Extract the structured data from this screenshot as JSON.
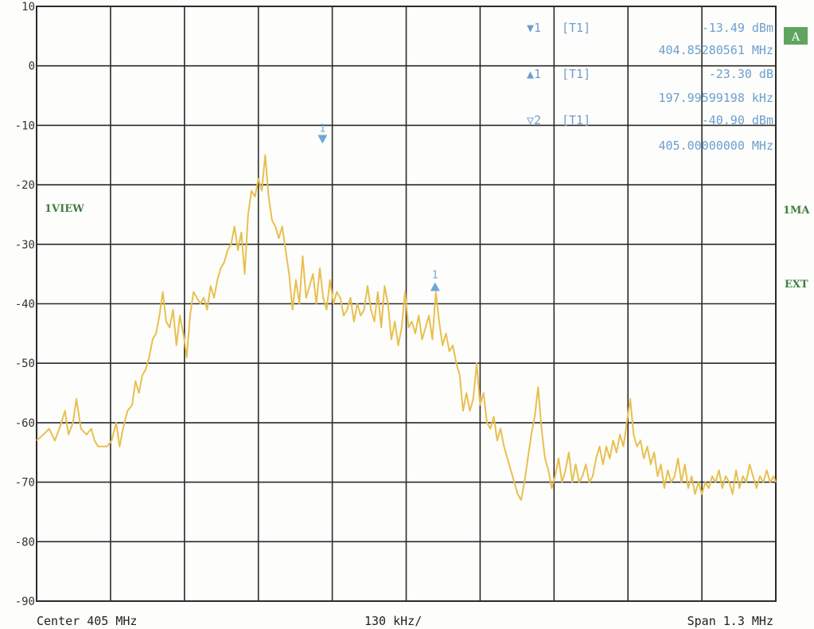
{
  "chart_data": {
    "type": "line",
    "x_unit": "MHz",
    "y_unit": "dBm",
    "xlim": [
      404.35,
      405.65
    ],
    "ylim": [
      -90,
      10
    ],
    "y_ticks": [
      10,
      0,
      -10,
      -20,
      -30,
      -40,
      -50,
      -60,
      -70,
      -80,
      -90
    ],
    "grid": true,
    "footer": {
      "center": "Center 405 MHz",
      "div": "130 kHz/",
      "span": "Span 1.3 MHz"
    },
    "side_labels": {
      "left": "1VIEW",
      "right_top": "A",
      "right_mid": "1MA",
      "right_low": "EXT"
    },
    "marker_table": [
      {
        "symbol": "▼1",
        "ref": "[T1]",
        "level": "-13.49 dBm",
        "freq": "404.85280561 MHz"
      },
      {
        "symbol": "▲1",
        "ref": "[T1]",
        "level": "-23.30 dB",
        "freq": "197.99599198 kHz"
      },
      {
        "symbol": "▽2",
        "ref": "[T1]",
        "level": "-40.90 dBm",
        "freq": "405.00000000 MHz"
      }
    ],
    "plot_markers": [
      {
        "label": "1",
        "shape": "down",
        "x": 404.8528,
        "y": -13.49
      },
      {
        "label": "1",
        "shape": "up",
        "x": 405.0508,
        "y": -36.79
      }
    ],
    "series": [
      {
        "color": "#e8c050",
        "points": [
          [
            404.35,
            -63
          ],
          [
            404.362,
            -62
          ],
          [
            404.372,
            -61
          ],
          [
            404.382,
            -63
          ],
          [
            404.39,
            -61
          ],
          [
            404.4,
            -58
          ],
          [
            404.406,
            -62
          ],
          [
            404.414,
            -60
          ],
          [
            404.42,
            -56
          ],
          [
            404.428,
            -61
          ],
          [
            404.438,
            -62
          ],
          [
            404.446,
            -61
          ],
          [
            404.452,
            -63
          ],
          [
            404.458,
            -64
          ],
          [
            404.466,
            -64
          ],
          [
            404.474,
            -64
          ],
          [
            404.482,
            -63
          ],
          [
            404.49,
            -60
          ],
          [
            404.496,
            -64
          ],
          [
            404.502,
            -61
          ],
          [
            404.51,
            -58
          ],
          [
            404.518,
            -57
          ],
          [
            404.524,
            -53
          ],
          [
            404.53,
            -55
          ],
          [
            404.536,
            -52
          ],
          [
            404.542,
            -51
          ],
          [
            404.548,
            -49
          ],
          [
            404.554,
            -46
          ],
          [
            404.56,
            -45
          ],
          [
            404.566,
            -42
          ],
          [
            404.572,
            -38
          ],
          [
            404.578,
            -43
          ],
          [
            404.584,
            -44
          ],
          [
            404.59,
            -41
          ],
          [
            404.596,
            -47
          ],
          [
            404.602,
            -42
          ],
          [
            404.608,
            -45
          ],
          [
            404.614,
            -49
          ],
          [
            404.62,
            -42
          ],
          [
            404.626,
            -38
          ],
          [
            404.632,
            -39
          ],
          [
            404.638,
            -40
          ],
          [
            404.644,
            -39
          ],
          [
            404.65,
            -41
          ],
          [
            404.656,
            -37
          ],
          [
            404.662,
            -39
          ],
          [
            404.668,
            -36
          ],
          [
            404.674,
            -34
          ],
          [
            404.68,
            -33
          ],
          [
            404.686,
            -31
          ],
          [
            404.692,
            -30
          ],
          [
            404.698,
            -27
          ],
          [
            404.704,
            -31
          ],
          [
            404.71,
            -28
          ],
          [
            404.716,
            -35
          ],
          [
            404.722,
            -25
          ],
          [
            404.728,
            -21
          ],
          [
            404.734,
            -22
          ],
          [
            404.74,
            -19
          ],
          [
            404.746,
            -21
          ],
          [
            404.752,
            -15
          ],
          [
            404.758,
            -22
          ],
          [
            404.764,
            -26
          ],
          [
            404.77,
            -27
          ],
          [
            404.776,
            -29
          ],
          [
            404.782,
            -27
          ],
          [
            404.788,
            -31
          ],
          [
            404.794,
            -35
          ],
          [
            404.8,
            -41
          ],
          [
            404.806,
            -36
          ],
          [
            404.812,
            -40
          ],
          [
            404.818,
            -32
          ],
          [
            404.824,
            -39
          ],
          [
            404.83,
            -37
          ],
          [
            404.836,
            -35
          ],
          [
            404.842,
            -40
          ],
          [
            404.848,
            -34
          ],
          [
            404.854,
            -39
          ],
          [
            404.86,
            -41
          ],
          [
            404.866,
            -36
          ],
          [
            404.872,
            -40
          ],
          [
            404.878,
            -38
          ],
          [
            404.884,
            -39
          ],
          [
            404.89,
            -42
          ],
          [
            404.896,
            -41
          ],
          [
            404.902,
            -39
          ],
          [
            404.908,
            -43
          ],
          [
            404.914,
            -40
          ],
          [
            404.92,
            -42
          ],
          [
            404.926,
            -41
          ],
          [
            404.932,
            -37
          ],
          [
            404.938,
            -41
          ],
          [
            404.944,
            -43
          ],
          [
            404.95,
            -38
          ],
          [
            404.956,
            -44
          ],
          [
            404.962,
            -37
          ],
          [
            404.968,
            -40
          ],
          [
            404.974,
            -46
          ],
          [
            404.98,
            -43
          ],
          [
            404.986,
            -47
          ],
          [
            404.992,
            -44
          ],
          [
            404.998,
            -38
          ],
          [
            405.004,
            -44
          ],
          [
            405.01,
            -43
          ],
          [
            405.016,
            -45
          ],
          [
            405.022,
            -42
          ],
          [
            405.028,
            -46
          ],
          [
            405.034,
            -44
          ],
          [
            405.04,
            -42
          ],
          [
            405.046,
            -46
          ],
          [
            405.052,
            -38
          ],
          [
            405.058,
            -43
          ],
          [
            405.064,
            -47
          ],
          [
            405.07,
            -45
          ],
          [
            405.076,
            -48
          ],
          [
            405.082,
            -47
          ],
          [
            405.088,
            -50
          ],
          [
            405.094,
            -52
          ],
          [
            405.1,
            -58
          ],
          [
            405.106,
            -55
          ],
          [
            405.112,
            -58
          ],
          [
            405.118,
            -56
          ],
          [
            405.124,
            -50
          ],
          [
            405.13,
            -57
          ],
          [
            405.136,
            -55
          ],
          [
            405.142,
            -60
          ],
          [
            405.148,
            -61
          ],
          [
            405.154,
            -59
          ],
          [
            405.16,
            -63
          ],
          [
            405.166,
            -61
          ],
          [
            405.172,
            -64
          ],
          [
            405.178,
            -66
          ],
          [
            405.184,
            -68
          ],
          [
            405.19,
            -70
          ],
          [
            405.196,
            -72
          ],
          [
            405.202,
            -73
          ],
          [
            405.208,
            -70
          ],
          [
            405.214,
            -66
          ],
          [
            405.22,
            -62
          ],
          [
            405.226,
            -59
          ],
          [
            405.232,
            -54
          ],
          [
            405.238,
            -61
          ],
          [
            405.244,
            -66
          ],
          [
            405.25,
            -68
          ],
          [
            405.256,
            -71
          ],
          [
            405.262,
            -69
          ],
          [
            405.268,
            -66
          ],
          [
            405.274,
            -70
          ],
          [
            405.28,
            -68
          ],
          [
            405.286,
            -65
          ],
          [
            405.292,
            -70
          ],
          [
            405.298,
            -67
          ],
          [
            405.304,
            -70
          ],
          [
            405.31,
            -69
          ],
          [
            405.316,
            -67
          ],
          [
            405.322,
            -70
          ],
          [
            405.328,
            -69
          ],
          [
            405.334,
            -66
          ],
          [
            405.34,
            -64
          ],
          [
            405.346,
            -67
          ],
          [
            405.352,
            -64
          ],
          [
            405.358,
            -66
          ],
          [
            405.364,
            -63
          ],
          [
            405.37,
            -65
          ],
          [
            405.376,
            -62
          ],
          [
            405.382,
            -64
          ],
          [
            405.388,
            -60
          ],
          [
            405.394,
            -56
          ],
          [
            405.4,
            -62
          ],
          [
            405.406,
            -64
          ],
          [
            405.412,
            -63
          ],
          [
            405.418,
            -66
          ],
          [
            405.424,
            -64
          ],
          [
            405.43,
            -67
          ],
          [
            405.436,
            -65
          ],
          [
            405.442,
            -69
          ],
          [
            405.448,
            -67
          ],
          [
            405.454,
            -71
          ],
          [
            405.46,
            -68
          ],
          [
            405.466,
            -70
          ],
          [
            405.472,
            -69
          ],
          [
            405.478,
            -66
          ],
          [
            405.484,
            -70
          ],
          [
            405.49,
            -67
          ],
          [
            405.496,
            -71
          ],
          [
            405.502,
            -69
          ],
          [
            405.508,
            -72
          ],
          [
            405.514,
            -70
          ],
          [
            405.52,
            -72
          ],
          [
            405.526,
            -70
          ],
          [
            405.532,
            -71
          ],
          [
            405.538,
            -69
          ],
          [
            405.544,
            -70
          ],
          [
            405.55,
            -68
          ],
          [
            405.556,
            -71
          ],
          [
            405.562,
            -69
          ],
          [
            405.568,
            -70
          ],
          [
            405.574,
            -72
          ],
          [
            405.58,
            -68
          ],
          [
            405.586,
            -71
          ],
          [
            405.592,
            -69
          ],
          [
            405.598,
            -70
          ],
          [
            405.604,
            -67
          ],
          [
            405.61,
            -69
          ],
          [
            405.616,
            -71
          ],
          [
            405.622,
            -69
          ],
          [
            405.628,
            -70
          ],
          [
            405.634,
            -68
          ],
          [
            405.64,
            -70
          ],
          [
            405.646,
            -69
          ],
          [
            405.65,
            -70
          ]
        ]
      }
    ]
  },
  "colors": {
    "grid": "#2b2b2b",
    "trace": "#e8c050",
    "marker": "#6ca8d8",
    "marker_text": "#6c9fd0",
    "side_green": "#3f7f3f",
    "badge_bg": "#5fa55f"
  }
}
